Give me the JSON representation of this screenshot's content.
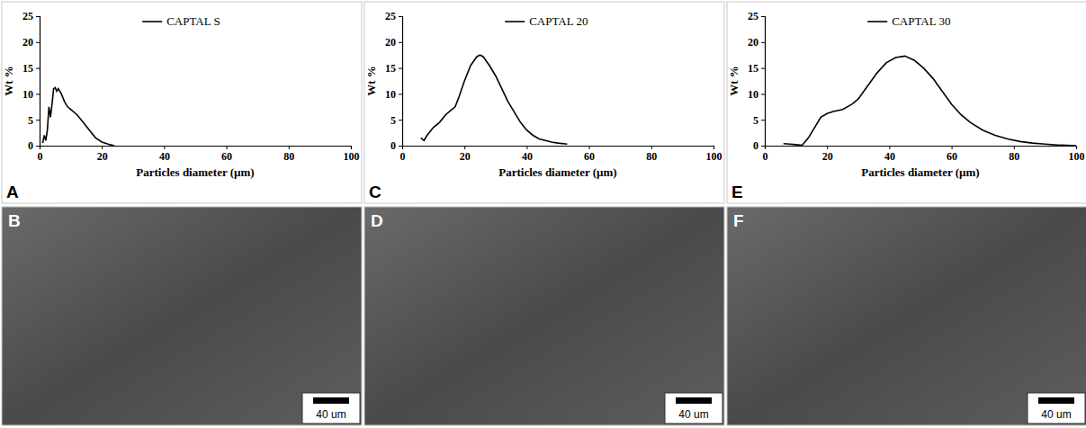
{
  "chart_data": [
    {
      "type": "line",
      "panel": "A",
      "x_label": "Particles diameter (µm)",
      "y_label": "Wt %",
      "x": [
        1,
        1.5,
        2,
        2.5,
        3,
        3.5,
        4,
        4.5,
        5,
        5.5,
        6,
        7,
        8,
        9,
        10,
        12,
        14,
        16,
        18,
        20,
        22,
        24
      ],
      "series": [
        {
          "name": "CAPTAL S",
          "color": "#000000",
          "values": [
            0.5,
            2,
            1,
            3,
            7.5,
            5.5,
            8,
            11,
            11.2,
            10.5,
            11,
            10,
            8.5,
            7.5,
            7,
            6,
            4.5,
            3,
            1.5,
            0.7,
            0.3,
            0
          ]
        }
      ],
      "xlim": [
        0,
        100
      ],
      "xticks": [
        0,
        20,
        40,
        60,
        80,
        100
      ],
      "ylim": [
        0,
        25
      ],
      "yticks": [
        0,
        5,
        10,
        15,
        20,
        25
      ],
      "grid": false,
      "legend": "top"
    },
    {
      "type": "line",
      "panel": "C",
      "x_label": "Particles diameter (µm)",
      "y_label": "Wt %",
      "x": [
        6,
        7,
        8,
        10,
        12,
        14,
        16,
        17,
        18,
        20,
        22,
        24,
        25,
        26,
        28,
        30,
        32,
        34,
        36,
        38,
        40,
        42,
        44,
        46,
        48,
        50,
        53
      ],
      "series": [
        {
          "name": "CAPTAL 20",
          "color": "#000000",
          "values": [
            1.5,
            1,
            2,
            3.5,
            4.5,
            6,
            7,
            7.5,
            9,
            12.5,
            15.5,
            17.2,
            17.5,
            17.2,
            15.5,
            13.5,
            11,
            8.5,
            6.5,
            4.5,
            3,
            2,
            1.3,
            1,
            0.7,
            0.5,
            0.3
          ]
        }
      ],
      "xlim": [
        0,
        100
      ],
      "xticks": [
        0,
        20,
        40,
        60,
        80,
        100
      ],
      "ylim": [
        0,
        25
      ],
      "yticks": [
        0,
        5,
        10,
        15,
        20,
        25
      ],
      "grid": false,
      "legend": "top"
    },
    {
      "type": "line",
      "panel": "E",
      "x_label": "Particles diameter (µm)",
      "y_label": "Wt %",
      "x": [
        6,
        8,
        10,
        12,
        14,
        16,
        18,
        20,
        22,
        25,
        28,
        30,
        33,
        36,
        39,
        42,
        45,
        48,
        51,
        54,
        57,
        60,
        63,
        66,
        70,
        74,
        78,
        82,
        86,
        90,
        95,
        100
      ],
      "series": [
        {
          "name": "CAPTAL 30",
          "color": "#000000",
          "values": [
            0.4,
            0.3,
            0.2,
            0.1,
            1.5,
            3.5,
            5.5,
            6.2,
            6.6,
            7,
            8,
            9,
            11.5,
            14,
            16,
            17,
            17.3,
            16.5,
            15,
            13,
            10.5,
            8,
            6,
            4.5,
            3,
            2,
            1.3,
            0.8,
            0.5,
            0.3,
            0.1,
            0
          ]
        }
      ],
      "xlim": [
        0,
        100
      ],
      "xticks": [
        0,
        20,
        40,
        60,
        80,
        100
      ],
      "ylim": [
        0,
        25
      ],
      "yticks": [
        0,
        5,
        10,
        15,
        20,
        25
      ],
      "grid": false,
      "legend": "top"
    }
  ],
  "images": [
    {
      "panel": "B",
      "scale_bar": "40 um"
    },
    {
      "panel": "D",
      "scale_bar": "40 um"
    },
    {
      "panel": "F",
      "scale_bar": "40 um"
    }
  ]
}
